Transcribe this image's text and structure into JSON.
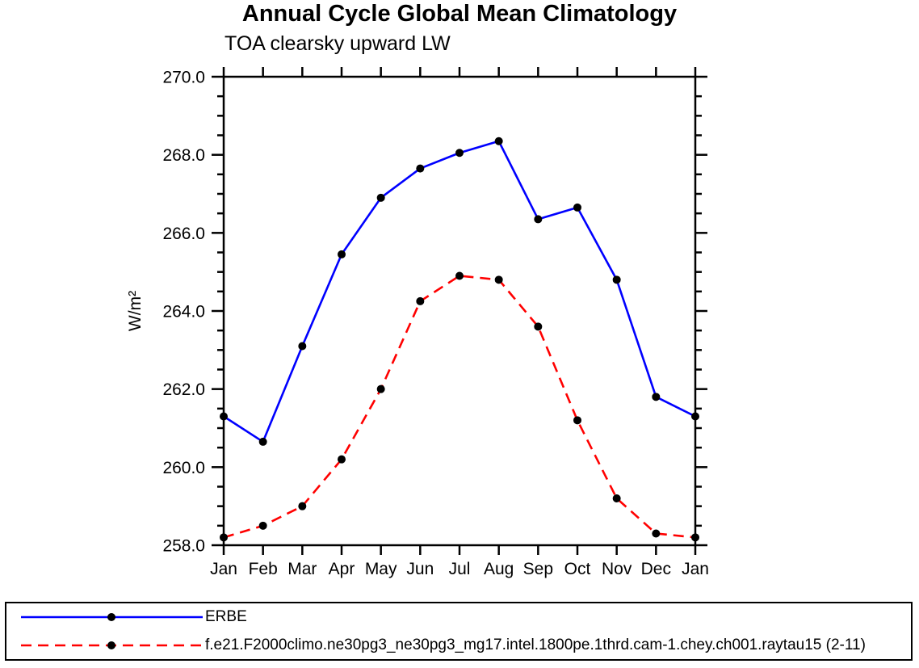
{
  "chart_data": {
    "type": "line",
    "title": "Annual Cycle Global Mean Climatology",
    "subtitle": "TOA clearsky upward LW",
    "ylabel": "W/m²",
    "xlabel": "",
    "categories": [
      "Jan",
      "Feb",
      "Mar",
      "Apr",
      "May",
      "Jun",
      "Jul",
      "Aug",
      "Sep",
      "Oct",
      "Nov",
      "Dec",
      "Jan"
    ],
    "ylim": [
      258.0,
      270.0
    ],
    "ytick_major_step": 2.0,
    "ytick_minor_step": 0.5,
    "ytick_labels": [
      "258.0",
      "260.0",
      "262.0",
      "264.0",
      "266.0",
      "268.0",
      "270.0"
    ],
    "grid": "off",
    "legend_position": "bottom-box",
    "series": [
      {
        "name": "ERBE",
        "color": "#0000ff",
        "line_style": "solid",
        "marker": "filled-circle",
        "marker_color": "#000000",
        "values": [
          261.3,
          260.65,
          263.1,
          265.45,
          266.9,
          267.65,
          268.05,
          268.35,
          266.35,
          266.65,
          264.8,
          261.8,
          261.3
        ]
      },
      {
        "name": "f.e21.F2000climo.ne30pg3_ne30pg3_mg17.intel.1800pe.1thrd.cam-1.chey.ch001.raytau15 (2-11)",
        "color": "#ff0000",
        "line_style": "dashed",
        "marker": "filled-circle",
        "marker_color": "#000000",
        "values": [
          258.2,
          258.5,
          259.0,
          260.2,
          262.0,
          264.25,
          264.9,
          264.8,
          263.6,
          261.2,
          259.2,
          258.3,
          258.2
        ]
      }
    ]
  }
}
